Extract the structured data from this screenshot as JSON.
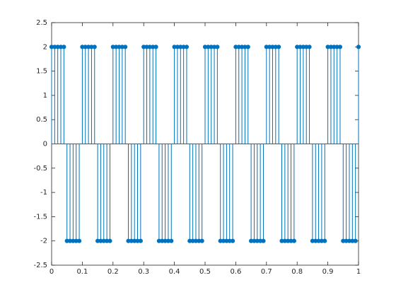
{
  "chart_data": {
    "type": "stem",
    "color": "#0072bd",
    "x": [
      0,
      0.01,
      0.02,
      0.03,
      0.04,
      0.05,
      0.06,
      0.07,
      0.08,
      0.09,
      0.1,
      0.11,
      0.12,
      0.13,
      0.14,
      0.15,
      0.16,
      0.17,
      0.18,
      0.19,
      0.2,
      0.21,
      0.22,
      0.23,
      0.24,
      0.25,
      0.26,
      0.27,
      0.28,
      0.29,
      0.3,
      0.31,
      0.32,
      0.33,
      0.34,
      0.35,
      0.36,
      0.37,
      0.38,
      0.39,
      0.4,
      0.41,
      0.42,
      0.43,
      0.44,
      0.45,
      0.46,
      0.47,
      0.48,
      0.49,
      0.5,
      0.51,
      0.52,
      0.53,
      0.54,
      0.55,
      0.56,
      0.57,
      0.58,
      0.59,
      0.6,
      0.61,
      0.62,
      0.63,
      0.64,
      0.65,
      0.66,
      0.67,
      0.68,
      0.69,
      0.7,
      0.71,
      0.72,
      0.73,
      0.74,
      0.75,
      0.76,
      0.77,
      0.78,
      0.79,
      0.8,
      0.81,
      0.82,
      0.83,
      0.84,
      0.85,
      0.86,
      0.87,
      0.88,
      0.89,
      0.9,
      0.91,
      0.92,
      0.93,
      0.94,
      0.95,
      0.96,
      0.97,
      0.98,
      0.99,
      1
    ],
    "values": [
      2,
      2,
      2,
      2,
      2,
      -2,
      -2,
      -2,
      -2,
      -2,
      2,
      2,
      2,
      2,
      2,
      -2,
      -2,
      -2,
      -2,
      -2,
      2,
      2,
      2,
      2,
      2,
      -2,
      -2,
      -2,
      -2,
      -2,
      2,
      2,
      2,
      2,
      2,
      -2,
      -2,
      -2,
      -2,
      -2,
      2,
      2,
      2,
      2,
      2,
      -2,
      -2,
      -2,
      -2,
      -2,
      2,
      2,
      2,
      2,
      2,
      -2,
      -2,
      -2,
      -2,
      -2,
      2,
      2,
      2,
      2,
      2,
      -2,
      -2,
      -2,
      -2,
      -2,
      2,
      2,
      2,
      2,
      2,
      -2,
      -2,
      -2,
      -2,
      -2,
      2,
      2,
      2,
      2,
      2,
      -2,
      -2,
      -2,
      -2,
      -2,
      2,
      2,
      2,
      2,
      2,
      -2,
      -2,
      -2,
      -2,
      -2,
      2
    ],
    "xlim": [
      0,
      1
    ],
    "ylim": [
      -2.5,
      2.5
    ],
    "xticks": [
      0,
      0.1,
      0.2,
      0.3,
      0.4,
      0.5,
      0.6,
      0.7,
      0.8,
      0.9,
      1
    ],
    "yticks": [
      -2.5,
      -2,
      -1.5,
      -1,
      -0.5,
      0,
      0.5,
      1,
      1.5,
      2,
      2.5
    ]
  }
}
